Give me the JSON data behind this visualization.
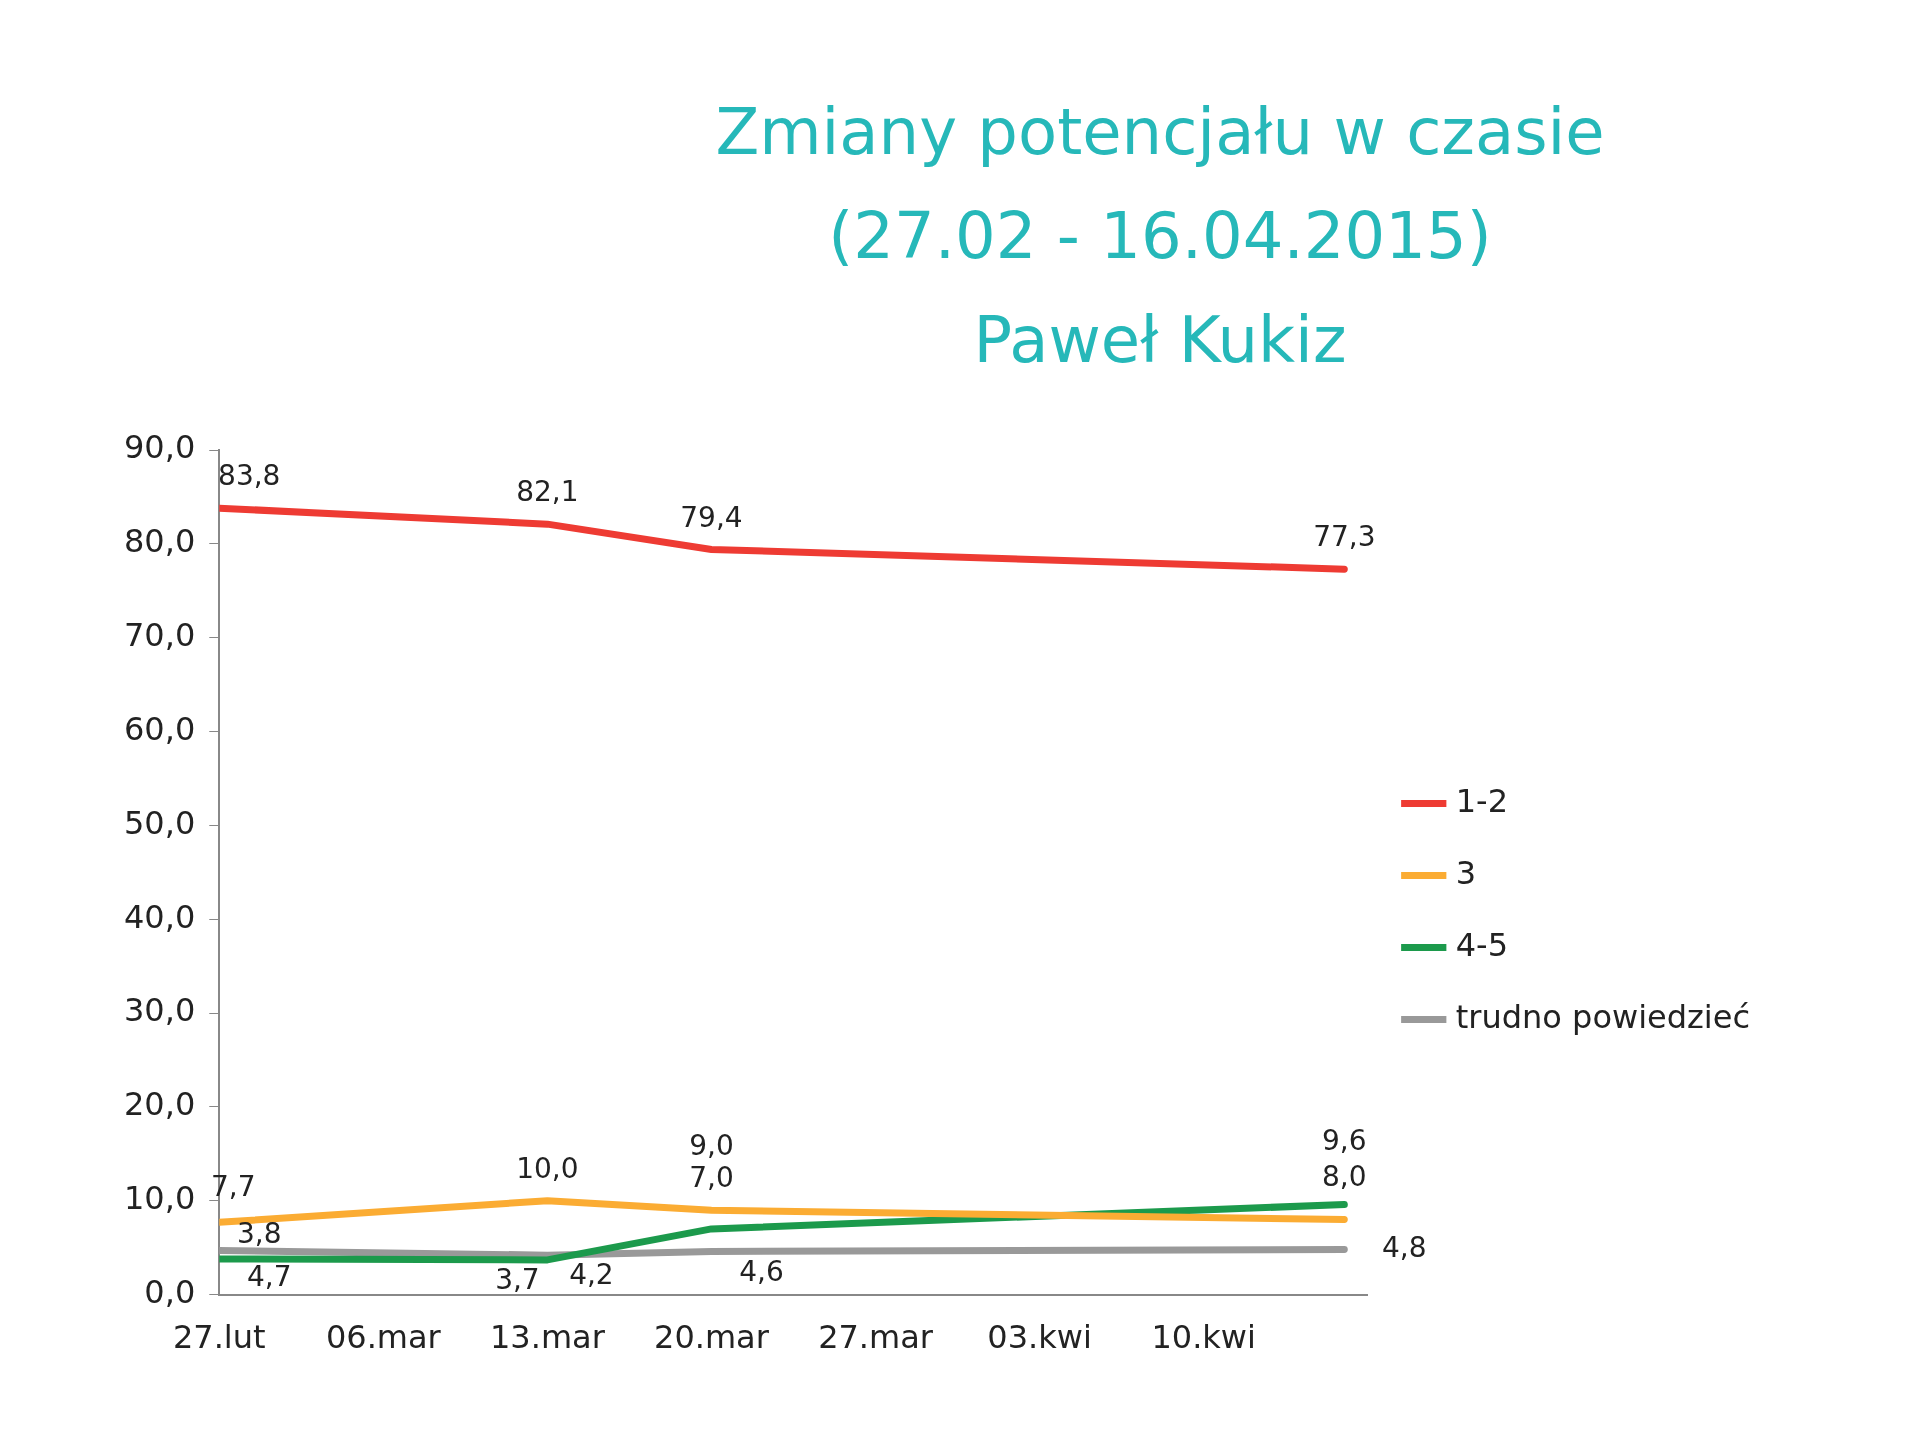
{
  "chart_data": {
    "type": "line",
    "title": "Zmiany potencjału w czasie (27.02 - 16.04.2015)",
    "subtitle": "Paweł Kukiz",
    "x": [
      "2015-02-27",
      "2015-03-13",
      "2015-03-20",
      "2015-04-16"
    ],
    "xlim": [
      "2015-02-27",
      "2015-04-17"
    ],
    "xticks": [
      {
        "value": "2015-02-27",
        "label": "27.lut"
      },
      {
        "value": "2015-03-06",
        "label": "06.mar"
      },
      {
        "value": "2015-03-13",
        "label": "13.mar"
      },
      {
        "value": "2015-03-20",
        "label": "20.mar"
      },
      {
        "value": "2015-03-27",
        "label": "27.mar"
      },
      {
        "value": "2015-04-03",
        "label": "03.kwi"
      },
      {
        "value": "2015-04-10",
        "label": "10.kwi"
      }
    ],
    "ylim": [
      0,
      90
    ],
    "yticks": [
      {
        "value": 0,
        "label": "0,0"
      },
      {
        "value": 10,
        "label": "10,0"
      },
      {
        "value": 20,
        "label": "20,0"
      },
      {
        "value": 30,
        "label": "30,0"
      },
      {
        "value": 40,
        "label": "40,0"
      },
      {
        "value": 50,
        "label": "50,0"
      },
      {
        "value": 60,
        "label": "60,0"
      },
      {
        "value": 70,
        "label": "70,0"
      },
      {
        "value": 80,
        "label": "80,0"
      },
      {
        "value": 90,
        "label": "90,0"
      }
    ],
    "series": [
      {
        "name": "1-2",
        "color": "#ee3b33",
        "values": [
          83.8,
          82.1,
          79.4,
          77.3
        ],
        "value_labels": [
          "83,8",
          "82,1",
          "79,4",
          "77,3"
        ]
      },
      {
        "name": "3",
        "color": "#fbac33",
        "values": [
          7.7,
          10.0,
          9.0,
          8.0
        ],
        "value_labels": [
          "7,7",
          "10,0",
          "9,0",
          "8,0"
        ]
      },
      {
        "name": "4-5",
        "color": "#1c9a4c",
        "values": [
          3.8,
          3.7,
          7.0,
          9.6
        ],
        "value_labels": [
          "3,8",
          "3,7",
          "7,0",
          "9,6"
        ]
      },
      {
        "name": "trudno powiedzieć",
        "color": "#999999",
        "values": [
          4.7,
          4.2,
          4.6,
          4.8
        ],
        "value_labels": [
          "4,7",
          "4,2",
          "4,6",
          "4,8"
        ]
      }
    ],
    "legend": "right",
    "marker": "none",
    "line_style": "solid"
  }
}
